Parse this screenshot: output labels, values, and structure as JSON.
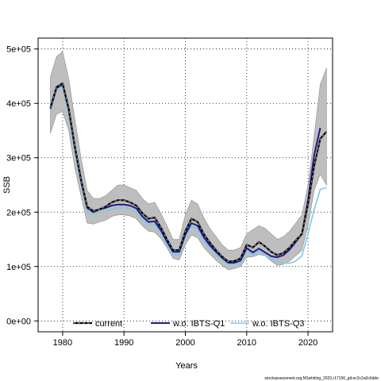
{
  "chart_data": {
    "type": "line",
    "xlabel": "Years",
    "ylabel": "SSB",
    "xlim": [
      1976,
      2024
    ],
    "ylim": [
      -20000,
      520000
    ],
    "x_ticks": [
      1980,
      1990,
      2000,
      2010,
      2020
    ],
    "y_ticks": [
      0,
      100000,
      200000,
      300000,
      400000,
      500000
    ],
    "y_tick_labels": [
      "0e+00",
      "1e+05",
      "2e+05",
      "3e+05",
      "4e+05",
      "5e+05"
    ],
    "grid": "dotted",
    "legend_position": "bottom",
    "colors": {
      "band": "#bebebe",
      "band_edge": "#8c8c8c",
      "current": "#222222",
      "q1": "#1f1a8c",
      "q3": "#7ec8ec"
    },
    "band": {
      "x": [
        1978,
        1979,
        1980,
        1981,
        1982,
        1983,
        1984,
        1985,
        1986,
        1987,
        1988,
        1989,
        1990,
        1991,
        1992,
        1993,
        1994,
        1995,
        1996,
        1997,
        1998,
        1999,
        2000,
        2001,
        2002,
        2003,
        2004,
        2005,
        2006,
        2007,
        2008,
        2009,
        2010,
        2011,
        2012,
        2013,
        2014,
        2015,
        2016,
        2017,
        2018,
        2019,
        2020,
        2021,
        2022,
        2023
      ],
      "upper": [
        448000,
        486000,
        495000,
        445000,
        370000,
        300000,
        240000,
        225000,
        225000,
        230000,
        240000,
        250000,
        250000,
        245000,
        240000,
        225000,
        215000,
        218000,
        198000,
        175000,
        150000,
        150000,
        195000,
        222000,
        215000,
        190000,
        170000,
        155000,
        140000,
        130000,
        130000,
        135000,
        160000,
        168000,
        175000,
        170000,
        160000,
        150000,
        155000,
        165000,
        180000,
        195000,
        250000,
        340000,
        435000,
        465000
      ],
      "lower": [
        345000,
        380000,
        385000,
        350000,
        280000,
        230000,
        180000,
        178000,
        182000,
        185000,
        192000,
        195000,
        195000,
        193000,
        188000,
        175000,
        165000,
        163000,
        152000,
        135000,
        115000,
        112000,
        140000,
        158000,
        153000,
        135000,
        123000,
        112000,
        102000,
        94000,
        96000,
        100000,
        117000,
        118000,
        122000,
        120000,
        110000,
        102000,
        104000,
        110000,
        120000,
        130000,
        175000,
        240000,
        270000,
        250000
      ]
    },
    "series": [
      {
        "name": "current",
        "x": [
          1978,
          1979,
          1980,
          1981,
          1982,
          1983,
          1984,
          1985,
          1986,
          1987,
          1988,
          1989,
          1990,
          1991,
          1992,
          1993,
          1994,
          1995,
          1996,
          1997,
          1998,
          1999,
          2000,
          2001,
          2002,
          2003,
          2004,
          2005,
          2006,
          2007,
          2008,
          2009,
          2010,
          2011,
          2012,
          2013,
          2014,
          2015,
          2016,
          2017,
          2018,
          2019,
          2020,
          2021,
          2022,
          2023
        ],
        "values": [
          392000,
          430000,
          437000,
          390000,
          320000,
          260000,
          210000,
          202000,
          205000,
          210000,
          218000,
          222000,
          222000,
          218000,
          212000,
          198000,
          188000,
          190000,
          172000,
          150000,
          130000,
          130000,
          165000,
          188000,
          182000,
          160000,
          144000,
          130000,
          118000,
          109000,
          110000,
          115000,
          140000,
          135000,
          145000,
          137000,
          127000,
          121000,
          125000,
          135000,
          148000,
          160000,
          215000,
          285000,
          335000,
          348000
        ]
      },
      {
        "name": "w.o. IBTS-Q1",
        "x": [
          1978,
          1979,
          1980,
          1981,
          1982,
          1983,
          1984,
          1985,
          1986,
          1987,
          1988,
          1989,
          1990,
          1991,
          1992,
          1993,
          1994,
          1995,
          1996,
          1997,
          1998,
          1999,
          2000,
          2001,
          2002,
          2003,
          2004,
          2005,
          2006,
          2007,
          2008,
          2009,
          2010,
          2011,
          2012,
          2013,
          2014,
          2015,
          2016,
          2017,
          2018,
          2019,
          2020,
          2021,
          2022
        ],
        "values": [
          390000,
          428000,
          435000,
          388000,
          318000,
          258000,
          208000,
          200000,
          205000,
          208000,
          212000,
          214000,
          214000,
          212000,
          207000,
          192000,
          182000,
          183000,
          167000,
          146000,
          127000,
          127000,
          159000,
          180000,
          175000,
          154000,
          139000,
          127000,
          116000,
          107000,
          107000,
          111000,
          134000,
          126000,
          133000,
          126000,
          119000,
          117000,
          121000,
          131000,
          145000,
          160000,
          222000,
          305000,
          355000
        ]
      },
      {
        "name": "w.o. IBTS-Q3",
        "x": [
          1978,
          1979,
          1980,
          1981,
          1982,
          1983,
          1984,
          1985,
          1986,
          1987,
          1988,
          1989,
          1990,
          1991,
          1992,
          1993,
          1994,
          1995,
          1996,
          1997,
          1998,
          1999,
          2000,
          2001,
          2002,
          2003,
          2004,
          2005,
          2006,
          2007,
          2008,
          2009,
          2010,
          2011,
          2012,
          2013,
          2014,
          2015,
          2016,
          2017,
          2018,
          2019,
          2020,
          2021,
          2022,
          2023
        ],
        "values": [
          385000,
          425000,
          432000,
          380000,
          310000,
          252000,
          202000,
          196000,
          200000,
          202000,
          205000,
          208000,
          208000,
          206000,
          200000,
          186000,
          177000,
          178000,
          162000,
          140000,
          122000,
          121000,
          154000,
          175000,
          168000,
          148000,
          133000,
          122000,
          112000,
          104000,
          105000,
          108000,
          128000,
          122000,
          128000,
          121000,
          114000,
          108000,
          107000,
          106000,
          110000,
          120000,
          160000,
          205000,
          242000,
          245000
        ]
      }
    ]
  },
  "footer": "stockassessment.org,NSwhiting_2023,r17156_git:ec2c2a0c6dde"
}
